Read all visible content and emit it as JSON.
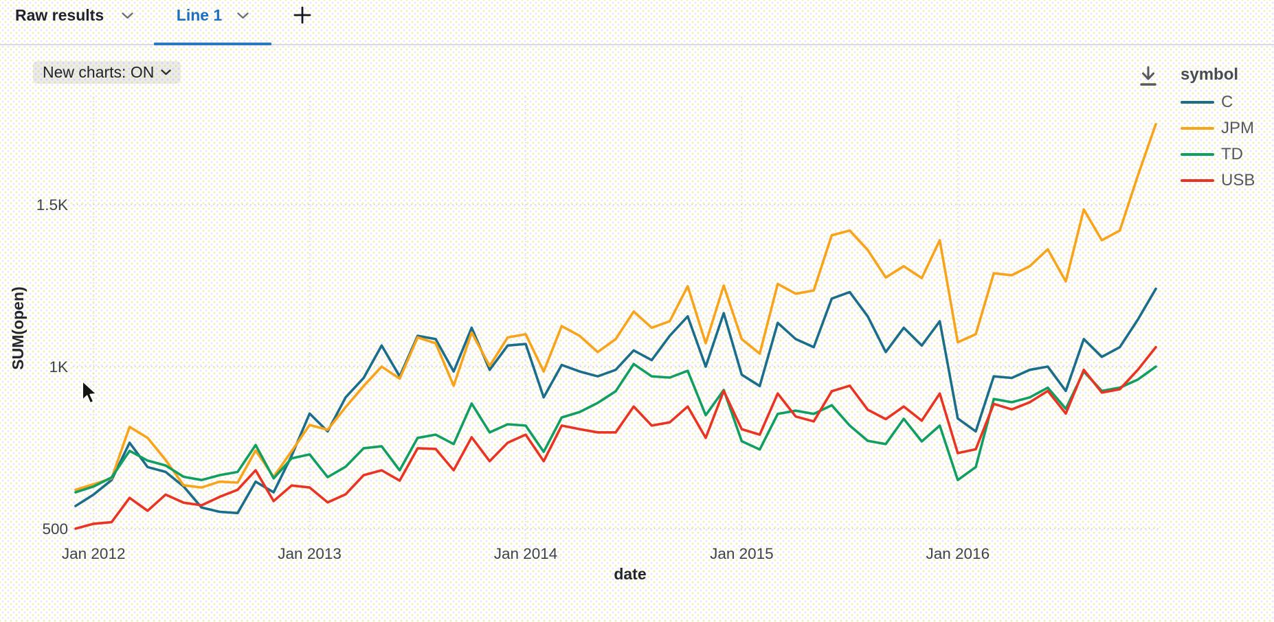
{
  "tabs": {
    "raw_results_label": "Raw results",
    "line1_label": "Line 1",
    "add_tab_label": "+"
  },
  "toolbar": {
    "new_charts_label": "New charts: ON"
  },
  "icons": {
    "chevron_down": "chevron-down",
    "download": "download-arrow-with-bar",
    "plus": "plus",
    "mouse_cursor": "arrow-pointer"
  },
  "colors": {
    "active_tab_blue": "#1d6fc0",
    "underline_blue": "#2e78c2",
    "grid": "#c9cad6",
    "tick_text": "#3c434b",
    "axis_label_text": "#23272b"
  },
  "chart_data": {
    "type": "line",
    "xlabel": "date",
    "ylabel": "SUM(open)",
    "legend_title": "symbol",
    "legend_position": "right",
    "grid": "dotted",
    "ylim": [
      450,
      1800
    ],
    "y_ticks": [
      500,
      1000,
      1500
    ],
    "y_tick_labels": [
      "500",
      "1K",
      "1.5K"
    ],
    "x_tick_positions": [
      1,
      13,
      25,
      37,
      49
    ],
    "x_tick_labels": [
      "Jan 2012",
      "Jan 2013",
      "Jan 2014",
      "Jan 2015",
      "Jan 2016"
    ],
    "x": [
      "2011-12",
      "2012-01",
      "2012-02",
      "2012-03",
      "2012-04",
      "2012-05",
      "2012-06",
      "2012-07",
      "2012-08",
      "2012-09",
      "2012-10",
      "2012-11",
      "2012-12",
      "2013-01",
      "2013-02",
      "2013-03",
      "2013-04",
      "2013-05",
      "2013-06",
      "2013-07",
      "2013-08",
      "2013-09",
      "2013-10",
      "2013-11",
      "2013-12",
      "2014-01",
      "2014-02",
      "2014-03",
      "2014-04",
      "2014-05",
      "2014-06",
      "2014-07",
      "2014-08",
      "2014-09",
      "2014-10",
      "2014-11",
      "2014-12",
      "2015-01",
      "2015-02",
      "2015-03",
      "2015-04",
      "2015-05",
      "2015-06",
      "2015-07",
      "2015-08",
      "2015-09",
      "2015-10",
      "2015-11",
      "2015-12",
      "2016-01",
      "2016-02",
      "2016-03",
      "2016-04",
      "2016-05",
      "2016-06",
      "2016-07",
      "2016-08",
      "2016-09",
      "2016-10",
      "2016-11",
      "2016-12"
    ],
    "series": [
      {
        "name": "C",
        "color": "#1b6d8c",
        "values": [
          570,
          605,
          650,
          765,
          690,
          675,
          630,
          565,
          552,
          548,
          645,
          612,
          725,
          855,
          800,
          905,
          965,
          1065,
          970,
          1095,
          1085,
          985,
          1120,
          990,
          1065,
          1070,
          905,
          1005,
          985,
          970,
          990,
          1050,
          1020,
          1095,
          1155,
          1000,
          1165,
          975,
          940,
          1135,
          1085,
          1060,
          1210,
          1230,
          1155,
          1045,
          1120,
          1065,
          1140,
          840,
          800,
          970,
          965,
          990,
          1000,
          925,
          1085,
          1030,
          1060,
          1145,
          1240
        ]
      },
      {
        "name": "JPM",
        "color": "#f7a41c",
        "values": [
          620,
          637,
          655,
          814,
          780,
          712,
          634,
          627,
          645,
          642,
          741,
          660,
          739,
          820,
          805,
          875,
          940,
          1000,
          963,
          1090,
          1072,
          941,
          1105,
          1002,
          1090,
          1100,
          985,
          1125,
          1095,
          1045,
          1085,
          1170,
          1120,
          1140,
          1248,
          1072,
          1250,
          1085,
          1040,
          1255,
          1225,
          1235,
          1405,
          1420,
          1360,
          1275,
          1310,
          1273,
          1390,
          1075,
          1100,
          1288,
          1282,
          1310,
          1362,
          1263,
          1485,
          1390,
          1420,
          1589,
          1748
        ]
      },
      {
        "name": "TD",
        "color": "#119e62",
        "values": [
          612,
          630,
          658,
          740,
          710,
          695,
          660,
          650,
          665,
          675,
          758,
          655,
          717,
          729,
          659,
          691,
          748,
          754,
          680,
          780,
          790,
          761,
          886,
          797,
          822,
          818,
          737,
          843,
          860,
          888,
          924,
          1008,
          970,
          966,
          987,
          850,
          928,
          770,
          744,
          854,
          864,
          854,
          881,
          818,
          771,
          761,
          839,
          769,
          818,
          650,
          690,
          900,
          890,
          905,
          935,
          870,
          985,
          925,
          935,
          960,
          1000
        ]
      },
      {
        "name": "USB",
        "color": "#ea3423",
        "values": [
          500,
          515,
          520,
          595,
          555,
          605,
          580,
          572,
          598,
          620,
          680,
          585,
          633,
          627,
          581,
          606,
          665,
          680,
          648,
          748,
          746,
          680,
          782,
          708,
          765,
          790,
          708,
          818,
          807,
          797,
          797,
          877,
          818,
          828,
          877,
          780,
          925,
          807,
          790,
          917,
          846,
          831,
          924,
          941,
          867,
          838,
          877,
          833,
          917,
          733,
          745,
          885,
          868,
          890,
          925,
          855,
          990,
          920,
          930,
          990,
          1060
        ]
      }
    ]
  }
}
